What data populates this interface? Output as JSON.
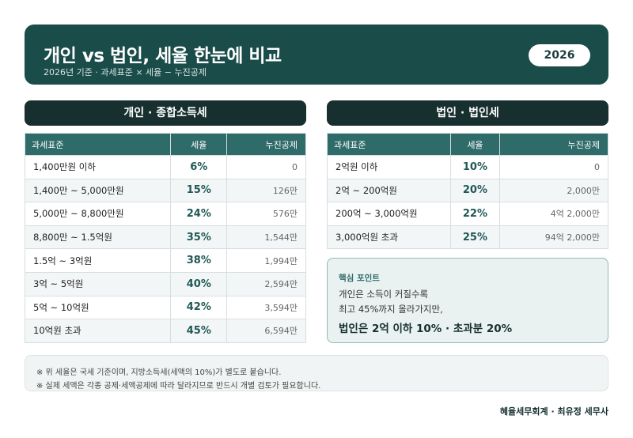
{
  "header": {
    "title": "개인 vs 법인, 세율 한눈에 비교",
    "subtitle": "2026년 기준 · 과세표준 × 세율 − 누진공제",
    "year": "2026"
  },
  "individual": {
    "section_title": "개인 · 종합소득세",
    "columns": [
      "과세표준",
      "세율",
      "누진공제"
    ],
    "rows": [
      {
        "base": "1,400만원 이하",
        "rate": "6%",
        "deduction": "0"
      },
      {
        "base": "1,400만 ~ 5,000만원",
        "rate": "15%",
        "deduction": "126만"
      },
      {
        "base": "5,000만 ~ 8,800만원",
        "rate": "24%",
        "deduction": "576만"
      },
      {
        "base": "8,800만 ~ 1.5억원",
        "rate": "35%",
        "deduction": "1,544만"
      },
      {
        "base": "1.5억 ~ 3억원",
        "rate": "38%",
        "deduction": "1,994만"
      },
      {
        "base": "3억 ~ 5억원",
        "rate": "40%",
        "deduction": "2,594만"
      },
      {
        "base": "5억 ~ 10억원",
        "rate": "42%",
        "deduction": "3,594만"
      },
      {
        "base": "10억원 초과",
        "rate": "45%",
        "deduction": "6,594만"
      }
    ]
  },
  "corporate": {
    "section_title": "법인 · 법인세",
    "columns": [
      "과세표준",
      "세율",
      "누진공제"
    ],
    "rows": [
      {
        "base": "2억원 이하",
        "rate": "10%",
        "deduction": "0"
      },
      {
        "base": "2억 ~ 200억원",
        "rate": "20%",
        "deduction": "2,000만"
      },
      {
        "base": "200억 ~ 3,000억원",
        "rate": "22%",
        "deduction": "4억 2,000만"
      },
      {
        "base": "3,000억원 초과",
        "rate": "25%",
        "deduction": "94억 2,000만"
      }
    ]
  },
  "keypoint": {
    "title": "핵심 포인트",
    "line1": "개인은 소득이 커질수록",
    "line2": "최고 45%까지 올라가지만,",
    "emphasis": "법인은 2억 이하 10% · 초과분 20%"
  },
  "notes": [
    "※ 위 세율은 국세 기준이며, 지방소득세(세액의 10%)가 별도로 붙습니다.",
    "※ 실제 세액은 각종 공제·세액공제에 따라 달라지므로 반드시 개별 검토가 필요합니다."
  ],
  "footer": "혜율세무회계 · 최유정 세무사"
}
